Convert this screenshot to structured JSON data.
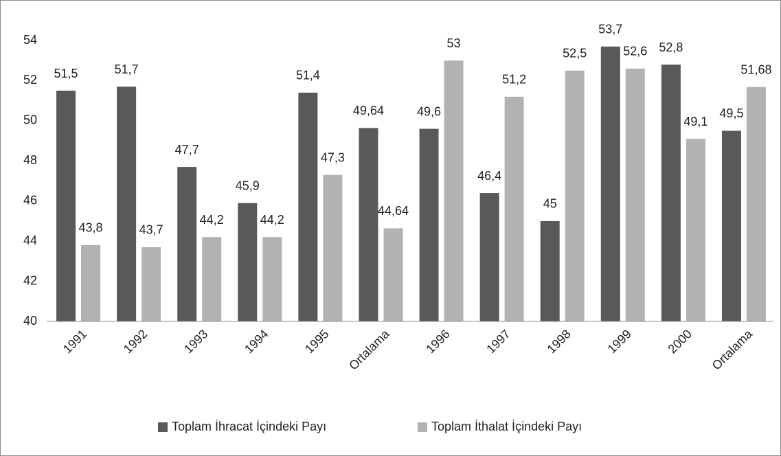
{
  "chart_data": {
    "type": "bar",
    "categories": [
      "1991",
      "1992",
      "1993",
      "1994",
      "1995",
      "Ortalama",
      "1996",
      "1997",
      "1998",
      "1999",
      "2000",
      "Ortalama"
    ],
    "series": [
      {
        "name": "Toplam İhracat İçindeki Payı",
        "color": "#595959",
        "values": [
          51.5,
          51.7,
          47.7,
          45.9,
          51.4,
          49.64,
          49.6,
          46.4,
          45,
          53.7,
          52.8,
          49.5
        ],
        "value_labels": [
          "51,5",
          "51,7",
          "47,7",
          "45,9",
          "51,4",
          "49,64",
          "49,6",
          "46,4",
          "45",
          "53,7",
          "52,8",
          "49,5"
        ]
      },
      {
        "name": "Toplam İthalat İçindeki Payı",
        "color": "#b2b2b2",
        "values": [
          43.8,
          43.7,
          44.2,
          44.2,
          47.3,
          44.64,
          53,
          51.2,
          52.5,
          52.6,
          49.1,
          51.68
        ],
        "value_labels": [
          "43,8",
          "43,7",
          "44,2",
          "44,2",
          "47,3",
          "44,64",
          "53",
          "51,2",
          "52,5",
          "52,6",
          "49,1",
          "51,68"
        ]
      }
    ],
    "ylim": [
      40,
      54
    ],
    "yticks": [
      40,
      42,
      44,
      46,
      48,
      50,
      52,
      54
    ],
    "grid": false,
    "legend": "bottom"
  }
}
